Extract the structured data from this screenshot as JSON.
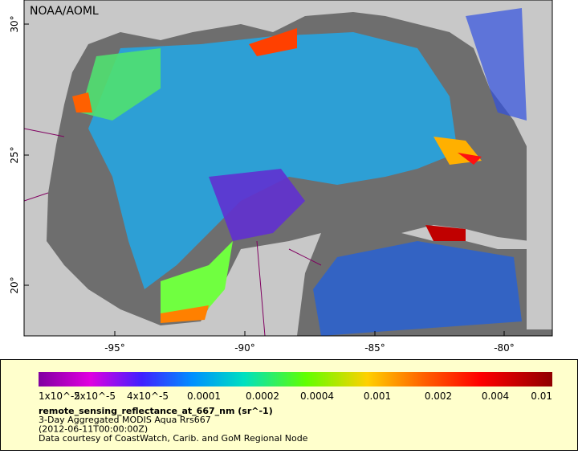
{
  "map": {
    "credit": "NOAA/AOML",
    "lat_ticks": [
      "30°",
      "25°",
      "20°"
    ],
    "lon_ticks": [
      "-95°",
      "-90°",
      "-85°",
      "-80°"
    ],
    "colorbar": {
      "labels": [
        "1x10^-5",
        "2x10^-5",
        "4x10^-5",
        "0.0001",
        "0.0002",
        "0.0004",
        "0.001",
        "0.002",
        "0.004",
        "0.01"
      ]
    },
    "legend": {
      "variable": "remote_sensing_reflectance_at_667_nm (sr^-1)",
      "lines": [
        "3-Day Aggregated MODIS Aqua Rrs667",
        "(2012-06-11T00:00:00Z)",
        "Data courtesy of CoastWatch, Carib. and GoM Regional Node"
      ]
    }
  }
}
